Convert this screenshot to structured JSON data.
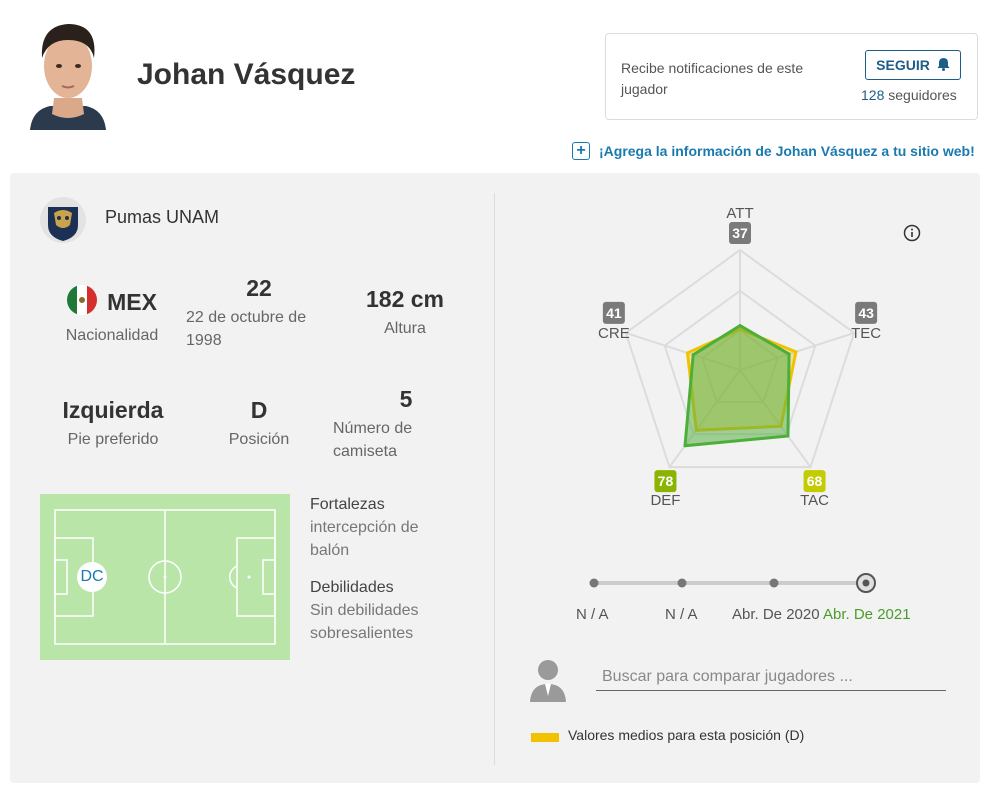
{
  "player": {
    "name": "Johan Vásquez"
  },
  "notifications": {
    "text": "Recibe notificaciones de este jugador",
    "follow_label": "SEGUIR",
    "followers_count": "128",
    "followers_label": "seguidores"
  },
  "embed_link": "¡Agrega la información de Johan Vásquez a tu sitio web!",
  "club": {
    "name": "Pumas UNAM"
  },
  "stats": {
    "nationality": {
      "value": "MEX",
      "label": "Nacionalidad"
    },
    "age": {
      "value": "22",
      "label": "22 de octubre de 1998"
    },
    "height": {
      "value": "182 cm",
      "label": "Altura"
    },
    "foot": {
      "value": "Izquierda",
      "label": "Pie preferido"
    },
    "position": {
      "value": "D",
      "label": "Posición"
    },
    "shirt": {
      "value": "5",
      "label": "Número de camiseta"
    }
  },
  "field": {
    "position_tag": "DC"
  },
  "strengths": {
    "title": "Fortalezas",
    "value": "intercepción de balón"
  },
  "weaknesses": {
    "title": "Debilidades",
    "value": "Sin debilidades sobresalientes"
  },
  "chart_data": {
    "type": "radar",
    "axes": [
      {
        "name": "ATT",
        "value": 37,
        "badge_color": "#7a7a7a"
      },
      {
        "name": "TEC",
        "value": 43,
        "badge_color": "#7a7a7a"
      },
      {
        "name": "TAC",
        "value": 68,
        "badge_color": "#c2cc00"
      },
      {
        "name": "DEF",
        "value": 78,
        "badge_color": "#8ab400"
      },
      {
        "name": "CRE",
        "value": 41,
        "badge_color": "#7a7a7a"
      }
    ],
    "range": [
      0,
      100
    ],
    "series": [
      {
        "values": [
          37,
          43,
          68,
          78,
          41
        ],
        "color": "#4caf3a",
        "fill": "rgba(90,176,70,0.55)"
      },
      {
        "values": [
          34,
          49,
          58,
          62,
          46
        ],
        "color": "#f2c200"
      }
    ]
  },
  "timeline": {
    "items": [
      {
        "label": "N / A",
        "active": false
      },
      {
        "label": "N / A",
        "active": false
      },
      {
        "label": "Abr. De 2020",
        "active": false
      },
      {
        "label": "Abr. De 2021",
        "active": true
      }
    ]
  },
  "compare": {
    "placeholder": "Buscar para comparar jugadores ..."
  },
  "legend": {
    "text": "Valores medios para esta posición (D)",
    "color": "#f2c200"
  },
  "colors": {
    "accent_blue": "#1c5e87",
    "link_blue": "#1a7ab0",
    "field_green": "#b9e6a8",
    "active_green": "#4a9d2a"
  }
}
